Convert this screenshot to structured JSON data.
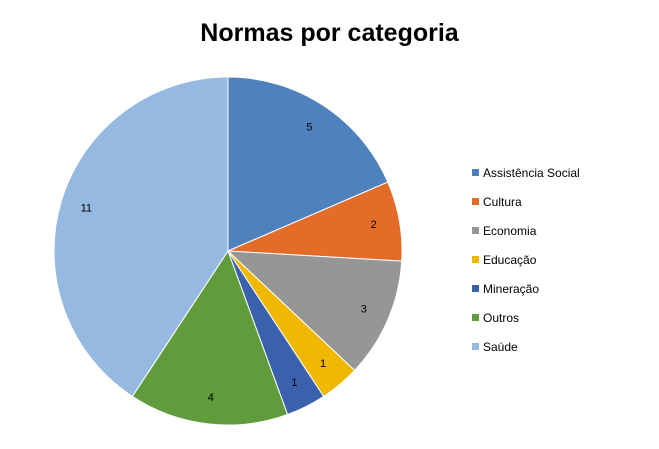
{
  "chart_data": {
    "type": "pie",
    "title": "Normas por categoria",
    "categories": [
      "Assistência Social",
      "Cultura",
      "Economia",
      "Educação",
      "Mineração",
      "Outros",
      "Saúde"
    ],
    "values": [
      5,
      2,
      3,
      1,
      1,
      4,
      11
    ],
    "colors": [
      "#4F81BD",
      "#E46C29",
      "#969696",
      "#F0B800",
      "#3A62AC",
      "#609C3C",
      "#95B9E0"
    ],
    "data_labels": [
      "5",
      "2",
      "3",
      "1",
      "1",
      "4",
      "11"
    ],
    "legend_position": "right",
    "start_angle": "12 o'clock",
    "direction": "clockwise"
  }
}
